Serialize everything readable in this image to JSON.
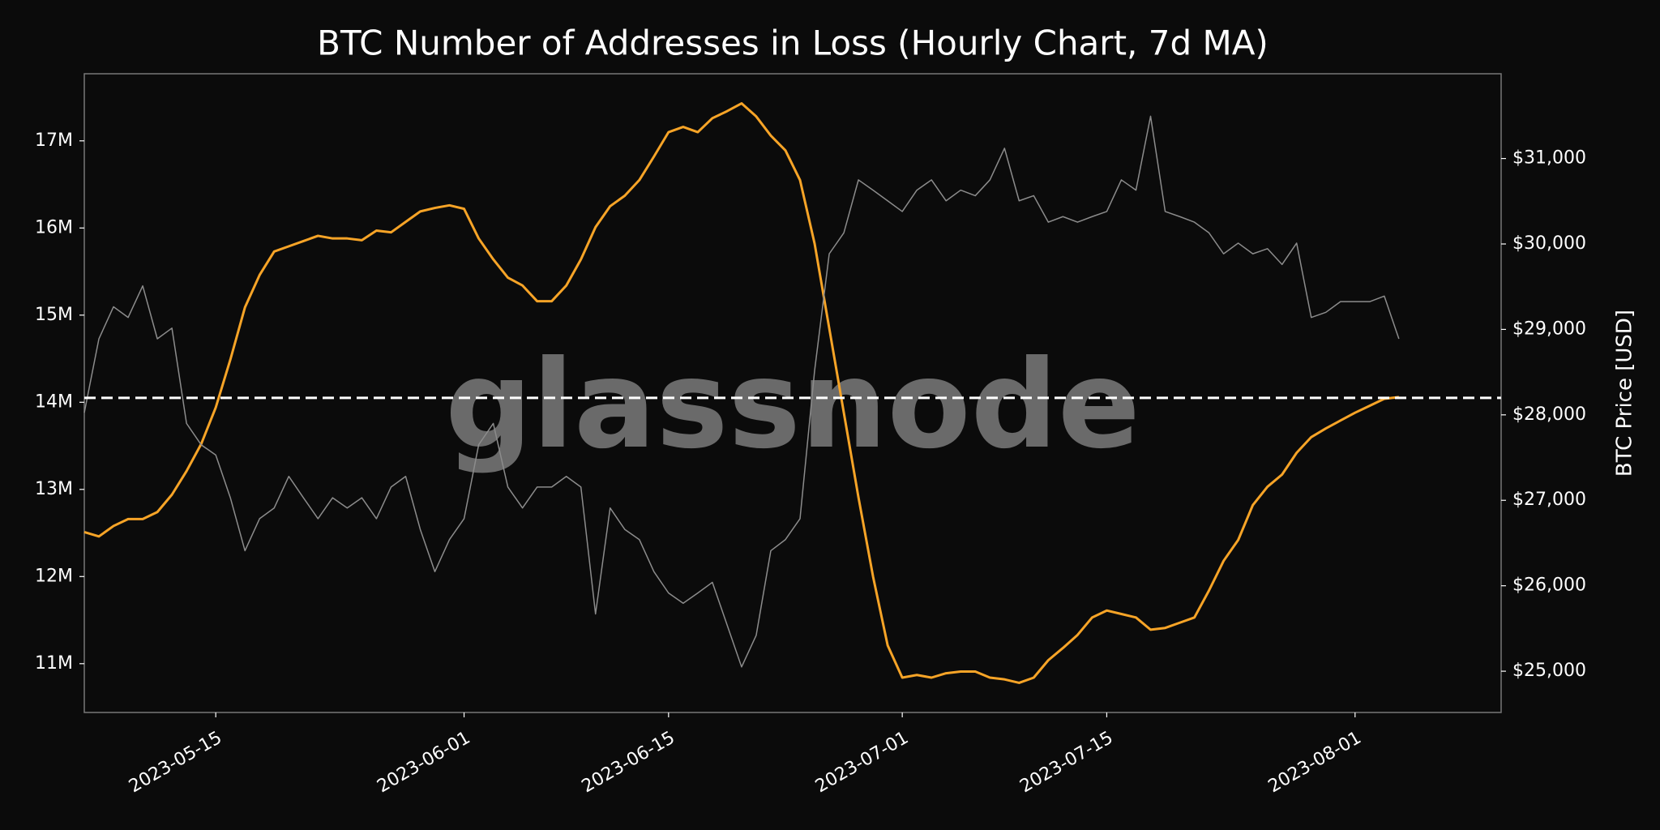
{
  "chart_data": {
    "type": "line",
    "title": "BTC Number of Addresses in Loss (Hourly Chart, 7d MA)",
    "y2label": "BTC Price [USD]",
    "watermark": "glassnode",
    "x": [
      "2023-05-06",
      "2023-05-07",
      "2023-05-08",
      "2023-05-09",
      "2023-05-10",
      "2023-05-11",
      "2023-05-12",
      "2023-05-13",
      "2023-05-14",
      "2023-05-15",
      "2023-05-16",
      "2023-05-17",
      "2023-05-18",
      "2023-05-19",
      "2023-05-20",
      "2023-05-21",
      "2023-05-22",
      "2023-05-23",
      "2023-05-24",
      "2023-05-25",
      "2023-05-26",
      "2023-05-27",
      "2023-05-28",
      "2023-05-29",
      "2023-05-30",
      "2023-05-31",
      "2023-06-01",
      "2023-06-02",
      "2023-06-03",
      "2023-06-04",
      "2023-06-05",
      "2023-06-06",
      "2023-06-07",
      "2023-06-08",
      "2023-06-09",
      "2023-06-10",
      "2023-06-11",
      "2023-06-12",
      "2023-06-13",
      "2023-06-14",
      "2023-06-15",
      "2023-06-16",
      "2023-06-17",
      "2023-06-18",
      "2023-06-19",
      "2023-06-20",
      "2023-06-21",
      "2023-06-22",
      "2023-06-23",
      "2023-06-24",
      "2023-06-25",
      "2023-06-26",
      "2023-06-27",
      "2023-06-28",
      "2023-06-29",
      "2023-06-30",
      "2023-07-01",
      "2023-07-02",
      "2023-07-03",
      "2023-07-04",
      "2023-07-05",
      "2023-07-06",
      "2023-07-07",
      "2023-07-08",
      "2023-07-09",
      "2023-07-10",
      "2023-07-11",
      "2023-07-12",
      "2023-07-13",
      "2023-07-14",
      "2023-07-15",
      "2023-07-16",
      "2023-07-17",
      "2023-07-18",
      "2023-07-19",
      "2023-07-20",
      "2023-07-21",
      "2023-07-22",
      "2023-07-23",
      "2023-07-24",
      "2023-07-25",
      "2023-07-26",
      "2023-07-27",
      "2023-07-28",
      "2023-07-29",
      "2023-07-30",
      "2023-07-31",
      "2023-08-01",
      "2023-08-02",
      "2023-08-03",
      "2023-08-04"
    ],
    "series": [
      {
        "name": "Addresses in Loss",
        "color": "#f7a427",
        "axis": "y",
        "values": [
          12510000,
          12460000,
          12580000,
          12660000,
          12660000,
          12740000,
          12940000,
          13210000,
          13520000,
          13940000,
          14490000,
          15090000,
          15460000,
          15730000,
          15790000,
          15850000,
          15910000,
          15880000,
          15880000,
          15860000,
          15970000,
          15950000,
          16070000,
          16190000,
          16230000,
          16260000,
          16220000,
          15880000,
          15640000,
          15430000,
          15340000,
          15160000,
          15160000,
          15340000,
          15640000,
          16010000,
          16250000,
          16370000,
          16550000,
          16820000,
          17100000,
          17160000,
          17100000,
          17260000,
          17340000,
          17430000,
          17280000,
          17060000,
          16890000,
          16550000,
          15820000,
          14850000,
          13880000,
          12910000,
          12000000,
          11210000,
          10840000,
          10870000,
          10840000,
          10890000,
          10910000,
          10910000,
          10840000,
          10820000,
          10780000,
          10840000,
          11040000,
          11180000,
          11330000,
          11530000,
          11610000,
          11570000,
          11530000,
          11390000,
          11410000,
          11470000,
          11530000,
          11840000,
          12180000,
          12420000,
          12820000,
          13030000,
          13170000,
          13420000,
          13600000,
          13700000,
          13790000,
          13880000,
          13960000,
          14040000,
          14060000
        ]
      },
      {
        "name": "BTC Price",
        "color": "#8c8c8c",
        "axis": "y2",
        "values": [
          28025,
          28890,
          29265,
          29140,
          29510,
          28890,
          29015,
          27900,
          27650,
          27530,
          27030,
          26410,
          26785,
          26910,
          27280,
          27030,
          26785,
          27030,
          26910,
          27030,
          26785,
          27155,
          27280,
          26660,
          26165,
          26540,
          26785,
          27650,
          27900,
          27155,
          26910,
          27155,
          27155,
          27280,
          27155,
          25670,
          26910,
          26660,
          26540,
          26165,
          25915,
          25795,
          25915,
          26040,
          25545,
          25050,
          25420,
          26410,
          26540,
          26785,
          28520,
          29885,
          30130,
          30750,
          30630,
          30505,
          30380,
          30630,
          30750,
          30505,
          30630,
          30565,
          30750,
          31120,
          30505,
          30565,
          30255,
          30320,
          30255,
          30320,
          30380,
          30750,
          30630,
          31495,
          30380,
          30320,
          30255,
          30130,
          29885,
          30010,
          29885,
          29945,
          29760,
          30010,
          29140,
          29200,
          29325,
          29325,
          29325,
          29390,
          28890
        ]
      }
    ],
    "reference_line": {
      "value": 14050000,
      "color": "#ffffff",
      "dashed": true
    },
    "xlim": [
      "2023-05-06",
      "2023-08-11"
    ],
    "xticks": [
      "2023-05-15",
      "2023-06-01",
      "2023-06-15",
      "2023-07-01",
      "2023-07-15",
      "2023-08-01"
    ],
    "ylim": [
      10440000,
      17770000
    ],
    "yticks": [
      {
        "value": 11000000,
        "label": "11M"
      },
      {
        "value": 12000000,
        "label": "12M"
      },
      {
        "value": 13000000,
        "label": "13M"
      },
      {
        "value": 14000000,
        "label": "14M"
      },
      {
        "value": 15000000,
        "label": "15M"
      },
      {
        "value": 16000000,
        "label": "16M"
      },
      {
        "value": 17000000,
        "label": "17M"
      }
    ],
    "y2lim": [
      24517,
      31992
    ],
    "y2ticks": [
      {
        "value": 25000,
        "label": "$25,000"
      },
      {
        "value": 26000,
        "label": "$26,000"
      },
      {
        "value": 27000,
        "label": "$27,000"
      },
      {
        "value": 28000,
        "label": "$28,000"
      },
      {
        "value": 29000,
        "label": "$29,000"
      },
      {
        "value": 30000,
        "label": "$30,000"
      },
      {
        "value": 31000,
        "label": "$31,000"
      }
    ],
    "grid": false
  }
}
